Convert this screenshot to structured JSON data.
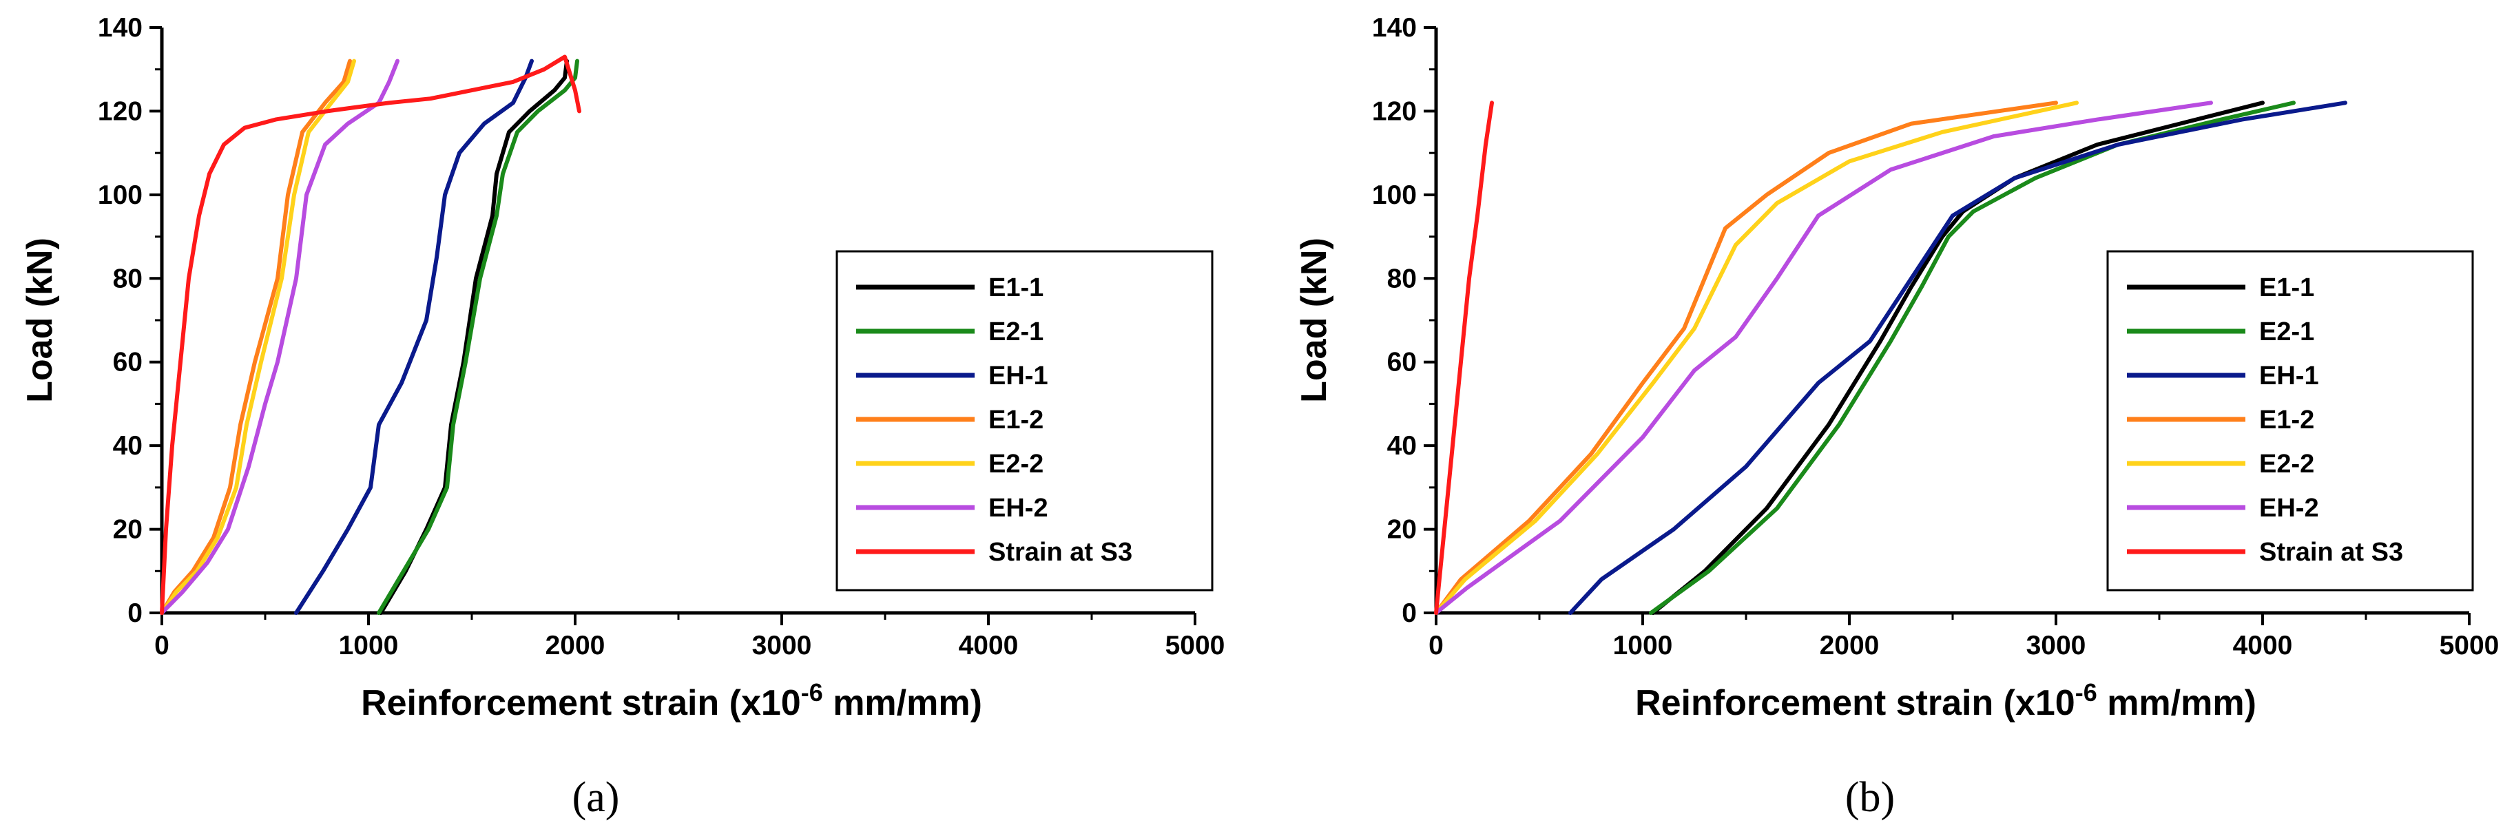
{
  "colors": {
    "E1-1": "#000000",
    "E2-1": "#1a8a1a",
    "EH-1": "#0a1a8c",
    "E1-2": "#ff7f1a",
    "E2-2": "#ffd21a",
    "EH-2": "#b84ce0",
    "Strain at S3": "#ff1a1a"
  },
  "chart_data": [
    {
      "type": "line",
      "panel_label": "(a)",
      "xlabel": "Reinforcement strain (x10",
      "xlabel_sup": "-6",
      "xlabel_tail": " mm/mm)",
      "ylabel": "Load (kN)",
      "xlim": [
        0,
        5000
      ],
      "ylim": [
        0,
        140
      ],
      "xticks": [
        "0",
        "1000",
        "2000",
        "3000",
        "4000",
        "5000"
      ],
      "yticks": [
        "0",
        "20",
        "40",
        "60",
        "80",
        "100",
        "120",
        "140"
      ],
      "legend_position": "right",
      "series": [
        {
          "name": "E1-1",
          "points": [
            [
              1060,
              0
            ],
            [
              1180,
              10
            ],
            [
              1280,
              20
            ],
            [
              1370,
              30
            ],
            [
              1400,
              45
            ],
            [
              1460,
              60
            ],
            [
              1520,
              80
            ],
            [
              1600,
              95
            ],
            [
              1620,
              105
            ],
            [
              1680,
              115
            ],
            [
              1780,
              120
            ],
            [
              1900,
              125
            ],
            [
              1950,
              128
            ],
            [
              1960,
              132
            ]
          ]
        },
        {
          "name": "E2-1",
          "points": [
            [
              1050,
              0
            ],
            [
              1170,
              10
            ],
            [
              1290,
              20
            ],
            [
              1380,
              30
            ],
            [
              1410,
              45
            ],
            [
              1470,
              60
            ],
            [
              1540,
              80
            ],
            [
              1620,
              95
            ],
            [
              1650,
              105
            ],
            [
              1720,
              115
            ],
            [
              1820,
              120
            ],
            [
              1950,
              125
            ],
            [
              2000,
              128
            ],
            [
              2010,
              132
            ]
          ]
        },
        {
          "name": "EH-1",
          "points": [
            [
              650,
              0
            ],
            [
              780,
              10
            ],
            [
              900,
              20
            ],
            [
              1010,
              30
            ],
            [
              1050,
              45
            ],
            [
              1160,
              55
            ],
            [
              1280,
              70
            ],
            [
              1330,
              85
            ],
            [
              1370,
              100
            ],
            [
              1440,
              110
            ],
            [
              1560,
              117
            ],
            [
              1700,
              122
            ],
            [
              1760,
              128
            ],
            [
              1790,
              132
            ]
          ]
        },
        {
          "name": "E1-2",
          "points": [
            [
              0,
              0
            ],
            [
              60,
              5
            ],
            [
              150,
              10
            ],
            [
              250,
              18
            ],
            [
              330,
              30
            ],
            [
              380,
              45
            ],
            [
              450,
              60
            ],
            [
              560,
              80
            ],
            [
              610,
              100
            ],
            [
              680,
              115
            ],
            [
              790,
              122
            ],
            [
              880,
              127
            ],
            [
              910,
              132
            ]
          ]
        },
        {
          "name": "E2-2",
          "points": [
            [
              0,
              0
            ],
            [
              70,
              5
            ],
            [
              170,
              10
            ],
            [
              270,
              18
            ],
            [
              360,
              30
            ],
            [
              410,
              45
            ],
            [
              480,
              60
            ],
            [
              580,
              80
            ],
            [
              640,
              100
            ],
            [
              710,
              115
            ],
            [
              820,
              122
            ],
            [
              900,
              127
            ],
            [
              930,
              132
            ]
          ]
        },
        {
          "name": "EH-2",
          "points": [
            [
              0,
              0
            ],
            [
              100,
              5
            ],
            [
              220,
              12
            ],
            [
              320,
              20
            ],
            [
              420,
              35
            ],
            [
              500,
              50
            ],
            [
              560,
              60
            ],
            [
              650,
              80
            ],
            [
              700,
              100
            ],
            [
              790,
              112
            ],
            [
              900,
              117
            ],
            [
              1050,
              122
            ],
            [
              1100,
              127
            ],
            [
              1140,
              132
            ]
          ]
        },
        {
          "name": "Strain at S3",
          "points": [
            [
              0,
              0
            ],
            [
              20,
              20
            ],
            [
              50,
              40
            ],
            [
              90,
              60
            ],
            [
              130,
              80
            ],
            [
              180,
              95
            ],
            [
              230,
              105
            ],
            [
              300,
              112
            ],
            [
              400,
              116
            ],
            [
              550,
              118
            ],
            [
              800,
              120
            ],
            [
              1100,
              122
            ],
            [
              1300,
              123
            ],
            [
              1500,
              125
            ],
            [
              1700,
              127
            ],
            [
              1850,
              130
            ],
            [
              1950,
              133
            ],
            [
              2000,
              125
            ],
            [
              2020,
              120
            ]
          ]
        }
      ]
    },
    {
      "type": "line",
      "panel_label": "(b)",
      "xlabel": "Reinforcement strain (x10",
      "xlabel_sup": "-6",
      "xlabel_tail": " mm/mm)",
      "ylabel": "Load (kN)",
      "xlim": [
        0,
        5000
      ],
      "ylim": [
        0,
        140
      ],
      "xticks": [
        "0",
        "1000",
        "2000",
        "3000",
        "4000",
        "5000"
      ],
      "yticks": [
        "0",
        "20",
        "40",
        "60",
        "80",
        "100",
        "120",
        "140"
      ],
      "legend_position": "right",
      "series": [
        {
          "name": "E1-1",
          "points": [
            [
              1050,
              0
            ],
            [
              1300,
              10
            ],
            [
              1600,
              25
            ],
            [
              1900,
              45
            ],
            [
              2150,
              65
            ],
            [
              2300,
              78
            ],
            [
              2450,
              90
            ],
            [
              2550,
              96
            ],
            [
              2800,
              104
            ],
            [
              3200,
              112
            ],
            [
              3600,
              117
            ],
            [
              4000,
              122
            ]
          ]
        },
        {
          "name": "E2-1",
          "points": [
            [
              1040,
              0
            ],
            [
              1320,
              10
            ],
            [
              1650,
              25
            ],
            [
              1950,
              45
            ],
            [
              2200,
              65
            ],
            [
              2350,
              78
            ],
            [
              2480,
              90
            ],
            [
              2600,
              96
            ],
            [
              2900,
              104
            ],
            [
              3300,
              112
            ],
            [
              3800,
              118
            ],
            [
              4150,
              122
            ]
          ]
        },
        {
          "name": "EH-1",
          "points": [
            [
              650,
              0
            ],
            [
              800,
              8
            ],
            [
              1150,
              20
            ],
            [
              1500,
              35
            ],
            [
              1850,
              55
            ],
            [
              2100,
              65
            ],
            [
              2300,
              80
            ],
            [
              2500,
              95
            ],
            [
              2800,
              104
            ],
            [
              3300,
              112
            ],
            [
              3900,
              118
            ],
            [
              4400,
              122
            ]
          ]
        },
        {
          "name": "E1-2",
          "points": [
            [
              0,
              0
            ],
            [
              120,
              8
            ],
            [
              450,
              22
            ],
            [
              750,
              38
            ],
            [
              1000,
              55
            ],
            [
              1200,
              68
            ],
            [
              1400,
              92
            ],
            [
              1600,
              100
            ],
            [
              1900,
              110
            ],
            [
              2300,
              117
            ],
            [
              3000,
              122
            ]
          ]
        },
        {
          "name": "E2-2",
          "points": [
            [
              0,
              0
            ],
            [
              140,
              8
            ],
            [
              480,
              22
            ],
            [
              780,
              38
            ],
            [
              1050,
              55
            ],
            [
              1250,
              68
            ],
            [
              1450,
              88
            ],
            [
              1650,
              98
            ],
            [
              2000,
              108
            ],
            [
              2450,
              115
            ],
            [
              3100,
              122
            ]
          ]
        },
        {
          "name": "EH-2",
          "points": [
            [
              0,
              0
            ],
            [
              150,
              6
            ],
            [
              600,
              22
            ],
            [
              1000,
              42
            ],
            [
              1250,
              58
            ],
            [
              1450,
              66
            ],
            [
              1650,
              80
            ],
            [
              1850,
              95
            ],
            [
              2200,
              106
            ],
            [
              2700,
              114
            ],
            [
              3200,
              118
            ],
            [
              3750,
              122
            ]
          ]
        },
        {
          "name": "Strain at S3",
          "points": [
            [
              0,
              0
            ],
            [
              40,
              20
            ],
            [
              80,
              40
            ],
            [
              120,
              60
            ],
            [
              160,
              80
            ],
            [
              200,
              95
            ],
            [
              240,
              112
            ],
            [
              270,
              122
            ]
          ]
        }
      ]
    }
  ]
}
